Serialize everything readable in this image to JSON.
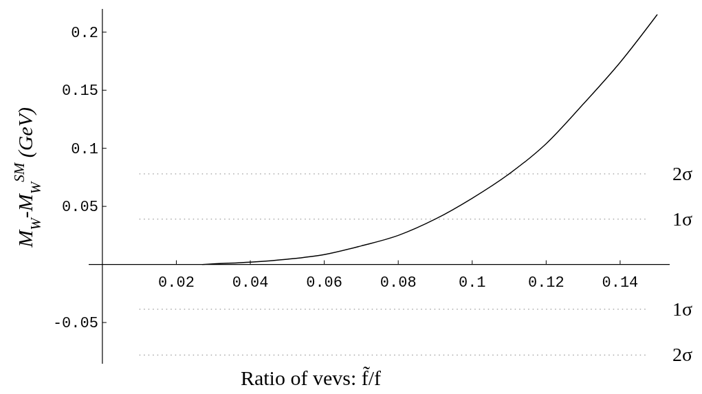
{
  "chart_data": {
    "type": "line",
    "xlabel": "Ratio of vevs: f̃/f",
    "ylabel": "M$_{W}$-M$_{W}$$^{SM}$ (GeV)",
    "x": [
      0.027,
      0.03,
      0.04,
      0.05,
      0.06,
      0.07,
      0.08,
      0.09,
      0.1,
      0.11,
      0.12,
      0.13,
      0.14,
      0.15
    ],
    "series": [
      {
        "color": "#000000",
        "values": [
          0,
          0.0005,
          0.002,
          0.0045,
          0.0085,
          0.016,
          0.025,
          0.039,
          0.057,
          0.078,
          0.104,
          0.138,
          0.174,
          0.215
        ]
      }
    ],
    "xlim": [
      -0.0037,
      0.1534
    ],
    "ylim": [
      -0.0855,
      0.22
    ],
    "xticks": [
      0.02,
      0.04,
      0.06,
      0.08,
      0.1,
      0.12,
      0.14
    ],
    "yticks": [
      -0.05,
      0.05,
      0.1,
      0.15,
      0.2
    ],
    "ref_lines": [
      {
        "axis": "y",
        "value": 0.078,
        "label": "2σ",
        "color": "#999999",
        "line_style": "dotted"
      },
      {
        "axis": "y",
        "value": 0.039,
        "label": "1σ",
        "color": "#999999",
        "line_style": "dotted"
      },
      {
        "axis": "y",
        "value": -0.0385,
        "label": "1σ",
        "color": "#999999",
        "line_style": "dotted"
      },
      {
        "axis": "y",
        "value": -0.078,
        "label": "2σ",
        "color": "#999999",
        "line_style": "dotted"
      }
    ],
    "grid": false,
    "marker": "none",
    "line_style": "solid"
  }
}
